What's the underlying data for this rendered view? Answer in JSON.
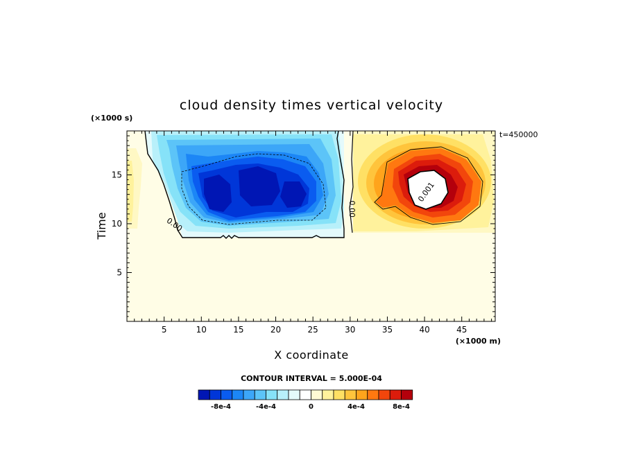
{
  "chart_data": {
    "type": "heatmap",
    "title": "cloud density times vertical velocity",
    "xlabel": "X coordinate",
    "ylabel": "Time",
    "x_unit_label": "(×1000 m)",
    "y_unit_label": "(×1000 s)",
    "time_stamp": "t=450000",
    "contour_interval_text": "CONTOUR INTERVAL = 5.000E-04",
    "xlim": [
      0,
      49.5
    ],
    "ylim": [
      0,
      19.5
    ],
    "x_ticks": [
      {
        "value": 5,
        "label": "5"
      },
      {
        "value": 10,
        "label": "10"
      },
      {
        "value": 15,
        "label": "15"
      },
      {
        "value": 20,
        "label": "20"
      },
      {
        "value": 25,
        "label": "25"
      },
      {
        "value": 30,
        "label": "30"
      },
      {
        "value": 35,
        "label": "35"
      },
      {
        "value": 40,
        "label": "40"
      },
      {
        "value": 45,
        "label": "45"
      }
    ],
    "y_ticks": [
      {
        "value": 5,
        "label": "5"
      },
      {
        "value": 10,
        "label": "10"
      },
      {
        "value": 15,
        "label": "15"
      }
    ],
    "contour_labels": [
      {
        "text": "0.00",
        "x": 6.2,
        "y": 9.7,
        "angle": 35
      },
      {
        "text": "0.00",
        "x": 29.9,
        "y": 11.5,
        "angle": 90
      },
      {
        "text": "0.001",
        "x": 40.5,
        "y": 13.1,
        "angle": -55
      }
    ],
    "legend": {
      "levels": [
        -0.001,
        -0.0009,
        -0.0008,
        -0.0007,
        -0.0006,
        -0.0005,
        -0.0004,
        -0.0003,
        -0.0002,
        -0.0001,
        0,
        0.0001,
        0.0002,
        0.0003,
        0.0004,
        0.0005,
        0.0006,
        0.0007,
        0.0008,
        0.0009,
        0.001
      ],
      "colors": [
        "#0016b4",
        "#0036d8",
        "#0a5cf0",
        "#1c86f6",
        "#3ca6f8",
        "#5cc4f8",
        "#86e2f8",
        "#b8f0fa",
        "#e4fafc",
        "#ffffff",
        "#fffad4",
        "#fff29c",
        "#ffe064",
        "#ffc43c",
        "#ffa41c",
        "#ff7810",
        "#f2460c",
        "#dc1c0c",
        "#b4000c"
      ],
      "tick_labels": [
        {
          "value": -0.0008,
          "label": "-8e-4"
        },
        {
          "value": -0.0004,
          "label": "-4e-4"
        },
        {
          "value": 0,
          "label": "0"
        },
        {
          "value": 0.0004,
          "label": "4e-4"
        },
        {
          "value": 0.0008,
          "label": "8e-4"
        }
      ]
    },
    "background_color": "#fffde6"
  }
}
